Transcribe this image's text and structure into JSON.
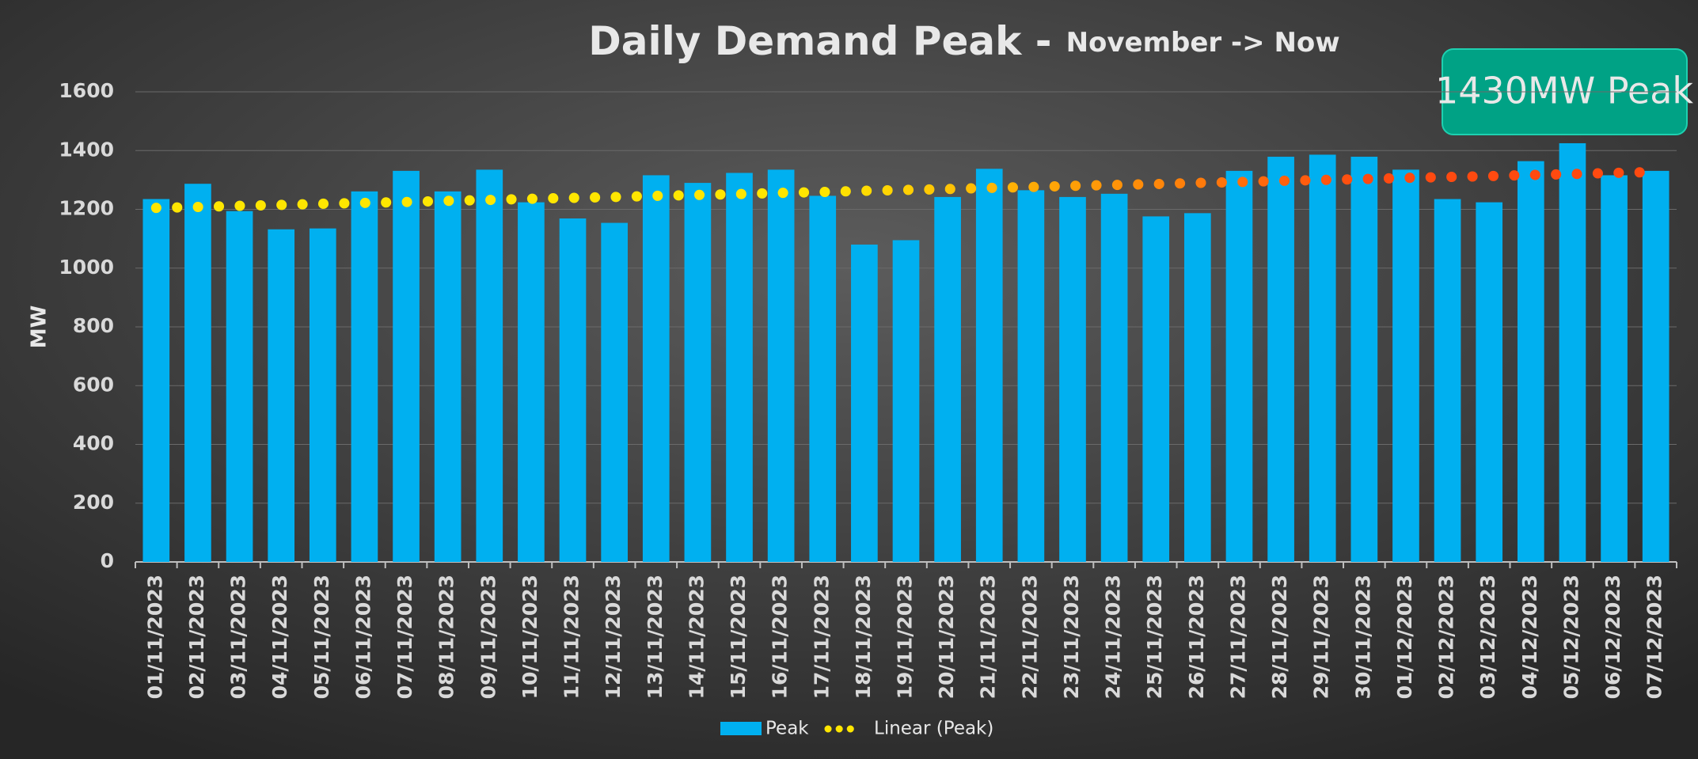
{
  "chart_data": {
    "type": "bar",
    "title": "Daily Demand Peak -",
    "subtitle": "November -> Now",
    "annotation": "1430MW Peak",
    "y_label": "MW",
    "categories": [
      "01/11/2023",
      "02/11/2023",
      "03/11/2023",
      "04/11/2023",
      "05/11/2023",
      "06/11/2023",
      "07/11/2023",
      "08/11/2023",
      "09/11/2023",
      "10/11/2023",
      "11/11/2023",
      "12/11/2023",
      "13/11/2023",
      "14/11/2023",
      "15/11/2023",
      "16/11/2023",
      "17/11/2023",
      "18/11/2023",
      "19/11/2023",
      "20/11/2023",
      "21/11/2023",
      "22/11/2023",
      "23/11/2023",
      "24/11/2023",
      "25/11/2023",
      "26/11/2023",
      "27/11/2023",
      "28/11/2023",
      "29/11/2023",
      "30/11/2023",
      "01/12/2023",
      "02/12/2023",
      "03/12/2023",
      "04/12/2023",
      "05/12/2023",
      "06/12/2023",
      "07/12/2023"
    ],
    "series": [
      {
        "name": "Peak",
        "color": "#00b0f0",
        "values": [
          1235,
          1287,
          1194,
          1132,
          1135,
          1261,
          1331,
          1261,
          1335,
          1224,
          1169,
          1154,
          1316,
          1290,
          1324,
          1335,
          1246,
          1080,
          1095,
          1242,
          1338,
          1265,
          1242,
          1253,
          1176,
          1187,
          1331,
          1379,
          1386,
          1379,
          1335,
          1235,
          1224,
          1364,
          1425,
          1316,
          1331
        ]
      },
      {
        "name": "Linear (Peak)",
        "color": "#ffe600",
        "color_end": "#ff4a10",
        "values": [
          1205,
          1208,
          1212,
          1215,
          1219,
          1222,
          1225,
          1229,
          1232,
          1236,
          1239,
          1242,
          1246,
          1249,
          1252,
          1256,
          1259,
          1263,
          1266,
          1269,
          1273,
          1276,
          1280,
          1283,
          1286,
          1290,
          1293,
          1297,
          1300,
          1303,
          1307,
          1310,
          1313,
          1317,
          1320,
          1324,
          1327
        ]
      }
    ],
    "ylim": [
      0,
      1600
    ],
    "yticks": [
      0,
      200,
      400,
      600,
      800,
      1000,
      1200,
      1400,
      1600
    ],
    "grid": true
  }
}
